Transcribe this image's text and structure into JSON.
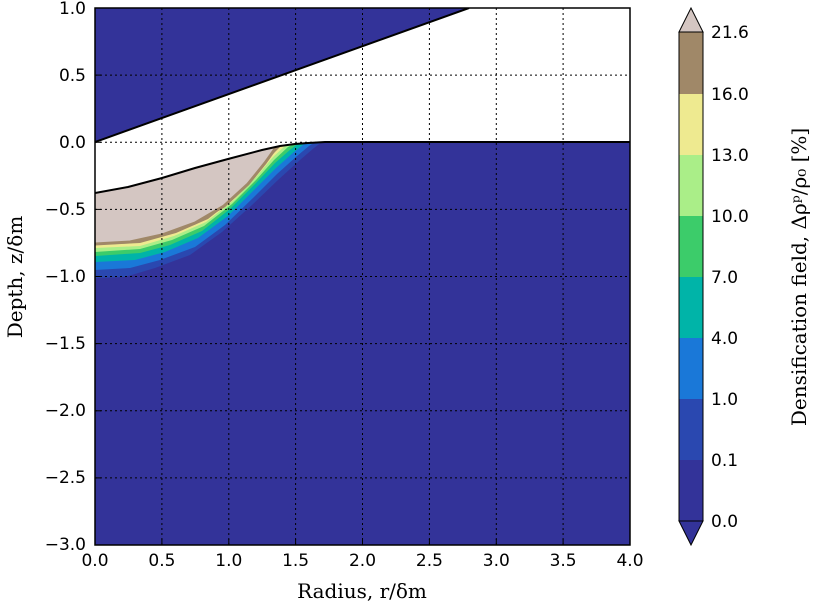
{
  "chart_data": {
    "type": "heatmap",
    "title": "",
    "xlabel": "Radius, r/δm",
    "ylabel": "Depth, z/δm",
    "colorbar_label": "Densification field, Δρᵖ/ρ₀ [%]",
    "xlim": [
      0.0,
      4.0
    ],
    "ylim": [
      -3.0,
      1.0
    ],
    "grid": true,
    "x_ticks": [
      "0.0",
      "0.5",
      "1.0",
      "1.5",
      "2.0",
      "2.5",
      "3.0",
      "3.5",
      "4.0"
    ],
    "y_ticks": [
      "1.0",
      "0.5",
      "0.0",
      "−0.5",
      "−1.0",
      "−1.5",
      "−2.0",
      "−2.5",
      "−3.0"
    ],
    "colorbar_levels": [
      "0.0",
      "0.1",
      "1.0",
      "4.0",
      "7.0",
      "10.0",
      "13.0",
      "16.0",
      "21.6"
    ],
    "colorbar_colors": [
      "#333399",
      "#2a48b0",
      "#1a78d8",
      "#00b4a8",
      "#3ccc6a",
      "#aaee88",
      "#eeea90",
      "#a08868",
      "#d4c6c2"
    ],
    "indenter_line": {
      "x": [
        0.0,
        2.8
      ],
      "z": [
        0.0,
        1.0
      ]
    },
    "surface_profile": {
      "x": [
        0.0,
        0.25,
        0.5,
        0.75,
        1.0,
        1.25,
        1.4,
        1.5,
        1.6,
        1.75,
        2.0,
        4.0
      ],
      "z": [
        -0.38,
        -0.33,
        -0.27,
        -0.2,
        -0.13,
        -0.06,
        -0.03,
        -0.015,
        -0.005,
        0.0,
        0.0,
        0.0
      ]
    },
    "max_contour_boundary": {
      "x": [
        0.0,
        0.25,
        0.5,
        0.75,
        1.0,
        1.15,
        1.3,
        1.4
      ],
      "z": [
        -0.76,
        -0.75,
        -0.71,
        -0.63,
        -0.5,
        -0.38,
        -0.2,
        -0.05
      ]
    }
  }
}
